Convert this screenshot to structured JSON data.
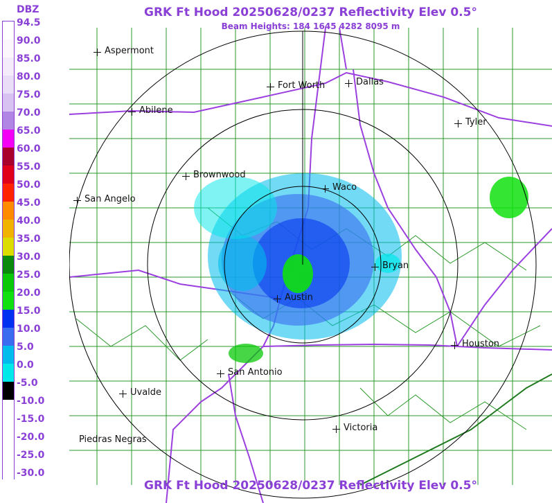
{
  "title": "GRK Ft Hood 20250628/0237 Reflectivity Elev 0.5°",
  "subtitle": "Beam Heights: 184 1645 4282 8095 m",
  "title_bottom": "GRK Ft Hood 20250628/0237 Reflectivity Elev 0.5°",
  "legend": {
    "unit": "DBZ",
    "entries": [
      {
        "label": "94.5",
        "color": "#ffffff"
      },
      {
        "label": "90.0",
        "color": "#fbf7fd"
      },
      {
        "label": "85.0",
        "color": "#f4ecfb"
      },
      {
        "label": "80.0",
        "color": "#e9ddf7"
      },
      {
        "label": "75.0",
        "color": "#d7c2f1"
      },
      {
        "label": "70.0",
        "color": "#b085e3"
      },
      {
        "label": "65.0",
        "color": "#f400f4"
      },
      {
        "label": "60.0",
        "color": "#a8002a"
      },
      {
        "label": "55.0",
        "color": "#e0001a"
      },
      {
        "label": "50.0",
        "color": "#ff2200"
      },
      {
        "label": "45.0",
        "color": "#ff8c00"
      },
      {
        "label": "40.0",
        "color": "#f0b400"
      },
      {
        "label": "35.0",
        "color": "#dcdc00"
      },
      {
        "label": "30.0",
        "color": "#0a8a0a"
      },
      {
        "label": "25.0",
        "color": "#08c808"
      },
      {
        "label": "20.0",
        "color": "#10e010"
      },
      {
        "label": "15.0",
        "color": "#0030f0"
      },
      {
        "label": "10.0",
        "color": "#3a6cf0"
      },
      {
        "label": "5.0",
        "color": "#00bcec"
      },
      {
        "label": "0.0",
        "color": "#00e8e8"
      },
      {
        "label": "-5.0",
        "color": "#000000"
      },
      {
        "label": "-10.0",
        "color": "#ffffff"
      },
      {
        "label": "-15.0",
        "color": "#ffffff"
      },
      {
        "label": "-20.0",
        "color": "#ffffff"
      },
      {
        "label": "-25.0",
        "color": "#ffffff"
      },
      {
        "label": "-30.0",
        "color": "#ffffff"
      }
    ]
  },
  "colors": {
    "highway": "#9b3fe0",
    "county_lines": "#2a9a2a",
    "range_rings": "#000000",
    "title": "#8a3fd6"
  },
  "cities": [
    {
      "name": "Aspermont"
    },
    {
      "name": "Fort Worth"
    },
    {
      "name": "Dallas"
    },
    {
      "name": "Abilene"
    },
    {
      "name": "Tyler"
    },
    {
      "name": "Brownwood"
    },
    {
      "name": "Waco"
    },
    {
      "name": "San Angelo"
    },
    {
      "name": "Bryan"
    },
    {
      "name": "Austin"
    },
    {
      "name": "Houston"
    },
    {
      "name": "San Antonio"
    },
    {
      "name": "Uvalde"
    },
    {
      "name": "Victoria"
    },
    {
      "name": "Piedras Negras"
    }
  ]
}
